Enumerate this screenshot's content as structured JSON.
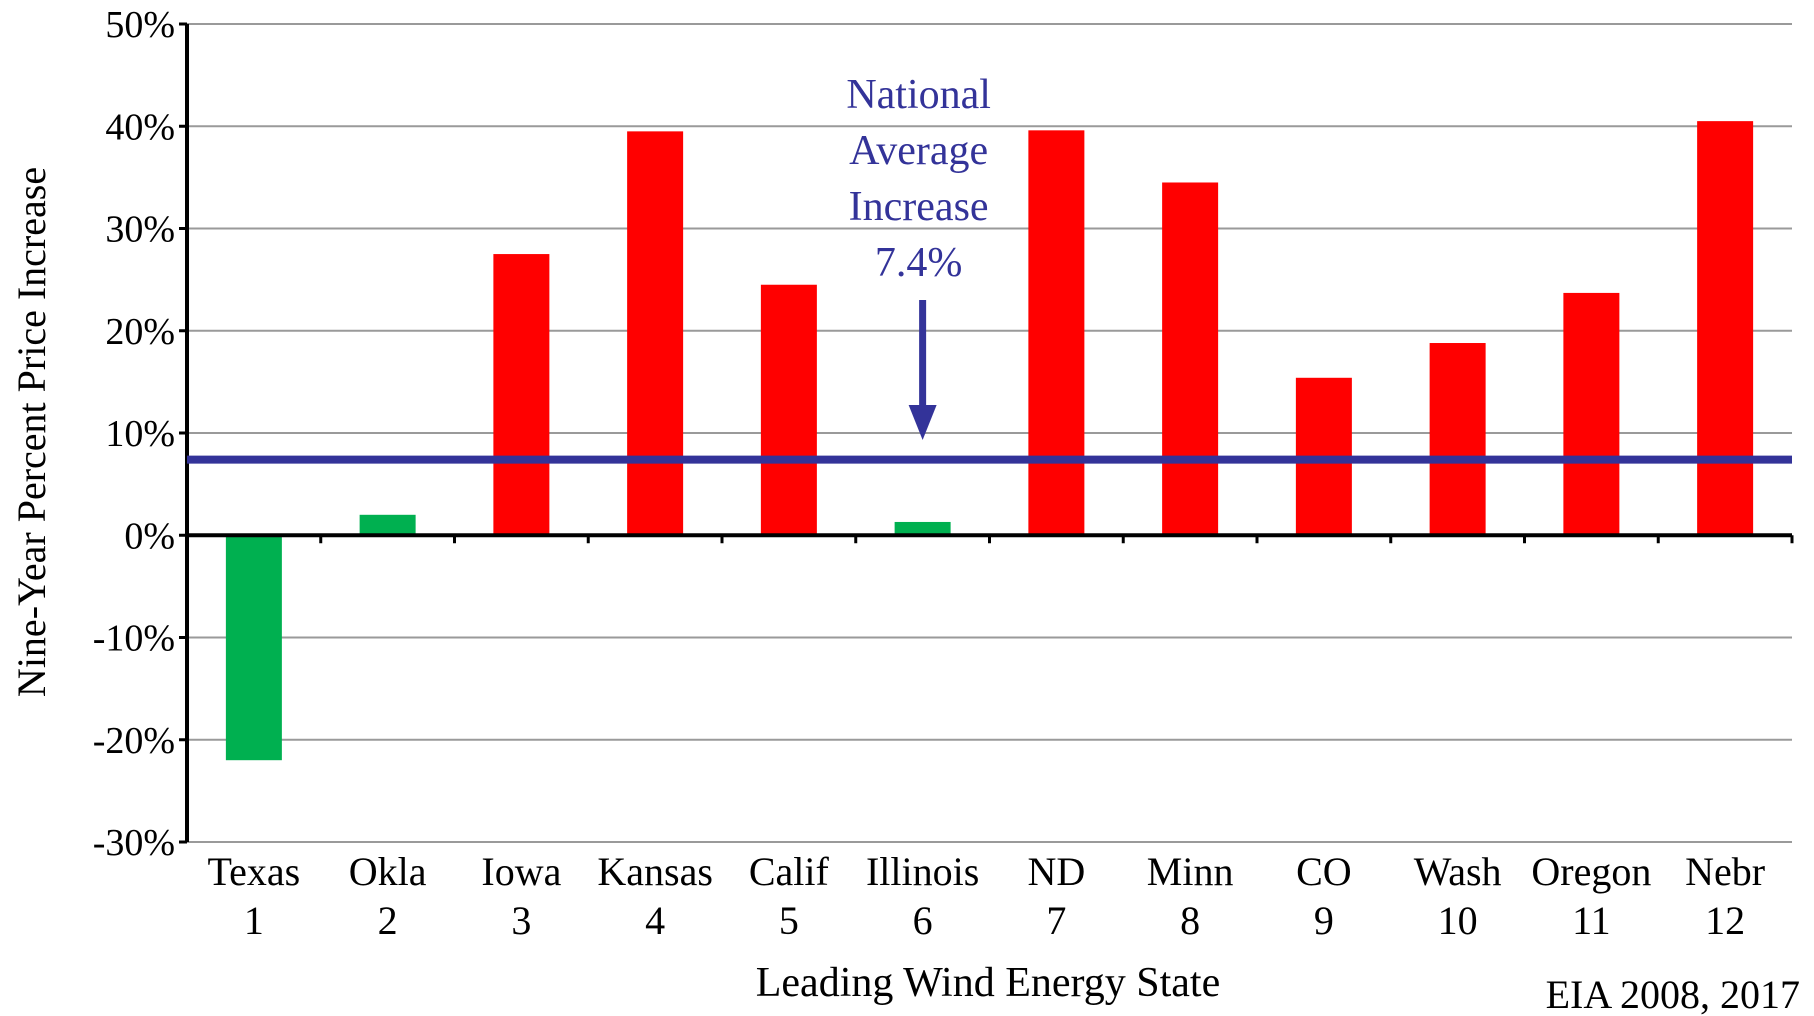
{
  "chart_data": {
    "type": "bar",
    "categories": [
      "Texas",
      "Okla",
      "Iowa",
      "Kansas",
      "Calif",
      "Illinois",
      "ND",
      "Minn",
      "CO",
      "Wash",
      "Oregon",
      "Nebr"
    ],
    "ranks": [
      "1",
      "2",
      "3",
      "4",
      "5",
      "6",
      "7",
      "8",
      "9",
      "10",
      "11",
      "12"
    ],
    "values": [
      -22,
      2,
      27.5,
      39.5,
      24.5,
      1.3,
      39.6,
      34.5,
      15.4,
      18.8,
      23.7,
      40.5
    ],
    "bar_colors": [
      "#00b050",
      "#00b050",
      "#ff0000",
      "#ff0000",
      "#ff0000",
      "#00b050",
      "#ff0000",
      "#ff0000",
      "#ff0000",
      "#ff0000",
      "#ff0000",
      "#ff0000"
    ],
    "xlabel": "Leading Wind Energy State",
    "ylabel": "Nine-Year Percent Price Increase",
    "ylim": [
      -30,
      50
    ],
    "yticks": [
      50,
      40,
      30,
      20,
      10,
      0,
      -10,
      -20,
      -30
    ],
    "ytick_labels": [
      "50%",
      "40%",
      "30%",
      "20%",
      "10%",
      "0%",
      "-10%",
      "-20%",
      "-30%"
    ],
    "grid": true,
    "reference_line": {
      "value": 7.4,
      "color": "#333399"
    },
    "annotation": {
      "lines": [
        "National",
        "Average",
        "Increase",
        "7.4%"
      ],
      "color": "#333399"
    },
    "source": "EIA 2008, 2017"
  }
}
